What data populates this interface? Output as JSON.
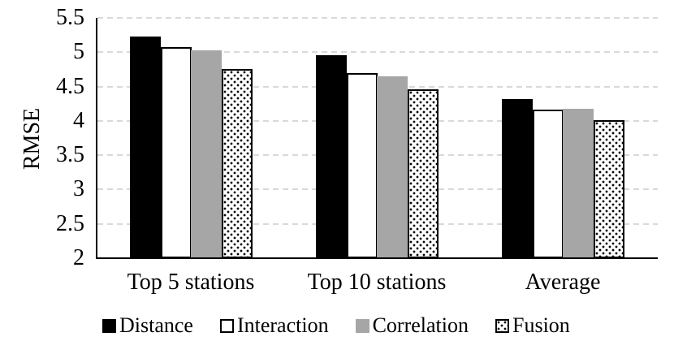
{
  "chart_data": {
    "type": "bar",
    "title": "",
    "xlabel": "",
    "ylabel": "RMSE",
    "ylim": [
      2,
      5.5
    ],
    "ytick_step": 0.5,
    "yticks": [
      {
        "label": "5.5",
        "value": 5.5
      },
      {
        "label": "5",
        "value": 5.0
      },
      {
        "label": "4.5",
        "value": 4.5
      },
      {
        "label": "4",
        "value": 4.0
      },
      {
        "label": "3.5",
        "value": 3.5
      },
      {
        "label": "3",
        "value": 3.0
      },
      {
        "label": "2.5",
        "value": 2.5
      },
      {
        "label": "2",
        "value": 2.0
      }
    ],
    "categories": [
      "Top 5 stations",
      "Top 10 stations",
      "Average"
    ],
    "series": [
      {
        "name": "Distance",
        "fill": "#000000",
        "border": "none",
        "pattern": "solid",
        "values": [
          5.23,
          4.96,
          4.32
        ]
      },
      {
        "name": "Interaction",
        "fill": "#ffffff",
        "border": "#000000",
        "pattern": "solid",
        "values": [
          5.08,
          4.7,
          4.16
        ]
      },
      {
        "name": "Correlation",
        "fill": "#a6a6a6",
        "border": "none",
        "pattern": "solid",
        "values": [
          5.03,
          4.65,
          4.17
        ]
      },
      {
        "name": "Fusion",
        "fill": "#ffffff",
        "border": "#000000",
        "pattern": "dots",
        "values": [
          4.76,
          4.46,
          4.01
        ]
      }
    ],
    "grid": {
      "on": true,
      "color": "#d9d9d9",
      "style": "dashed",
      "orientation": "horizontal"
    },
    "axis_color": "#000000",
    "legend_position": "bottom"
  }
}
